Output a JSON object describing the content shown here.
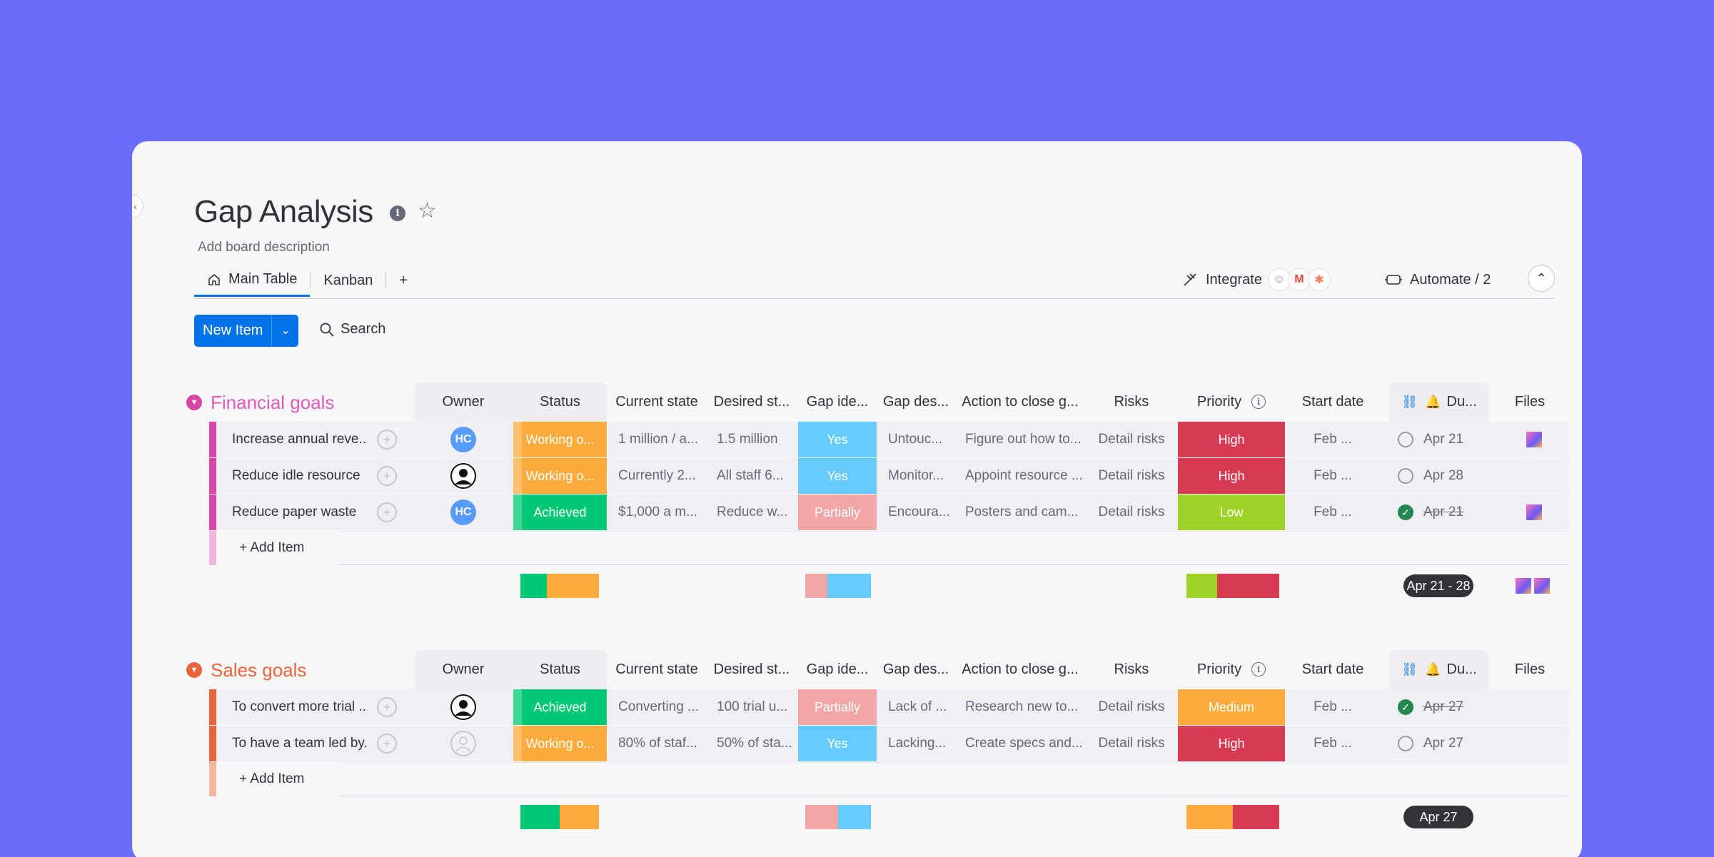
{
  "board": {
    "title": "Gap Analysis",
    "info_icon": "i",
    "description": "Add board description",
    "collapse_glyph": "‹"
  },
  "tabs": {
    "main": "Main Table",
    "kanban": "Kanban",
    "add": "+"
  },
  "toolbar": {
    "integrate": "Integrate",
    "automate": "Automate / 2",
    "new_item": "New Item",
    "search": "Search"
  },
  "columns": [
    "Owner",
    "Status",
    "Current state",
    "Desired st...",
    "Gap ide...",
    "Gap des...",
    "Action to close g...",
    "Risks",
    "Priority",
    "Start date",
    "Du...",
    "Files"
  ],
  "groups": [
    {
      "title": "Financial goals",
      "color": "#e2445c",
      "accent": "#d946a6",
      "add_item": "+ Add Item",
      "rows": [
        {
          "name": "Increase annual reve...",
          "owner": "HC",
          "status": "Working o...",
          "current": "1 million / a...",
          "desired": "1.5 million",
          "gap": "Yes",
          "gapdesc": "Untouc...",
          "action": "Figure out how to...",
          "risks": "Detail risks",
          "priority": "High",
          "start": "Feb ...",
          "due": "Apr 21",
          "due_done": false,
          "file": true
        },
        {
          "name": "Reduce idle resource",
          "owner": "person",
          "status": "Working o...",
          "current": "Currently 2...",
          "desired": "All staff 6...",
          "gap": "Yes",
          "gapdesc": "Monitor...",
          "action": "Appoint resource ...",
          "risks": "Detail risks",
          "priority": "High",
          "start": "Feb ...",
          "due": "Apr 28",
          "due_done": false,
          "file": false
        },
        {
          "name": "Reduce paper waste",
          "owner": "HC",
          "status": "Achieved",
          "current": "$1,000 a m...",
          "desired": "Reduce w...",
          "gap": "Partially",
          "gapdesc": "Encoura...",
          "action": "Posters and cam...",
          "risks": "Detail risks",
          "priority": "Low",
          "start": "Feb ...",
          "due": "Apr 21",
          "due_done": true,
          "file": true
        }
      ],
      "due_summary": "Apr 21 - 28"
    },
    {
      "title": "Sales goals",
      "color": "#e8643b",
      "add_item": "+ Add Item",
      "rows": [
        {
          "name": "To convert more trial ...",
          "owner": "person",
          "status": "Achieved",
          "current": "Converting ...",
          "desired": "100 trial u...",
          "gap": "Partially",
          "gapdesc": "Lack of ...",
          "action": "Research new to...",
          "risks": "Detail risks",
          "priority": "Medium",
          "start": "Feb ...",
          "due": "Apr 27",
          "due_done": true,
          "file": false
        },
        {
          "name": "To have a team led by...",
          "owner": "empty",
          "status": "Working o...",
          "current": "80% of staf...",
          "desired": "50% of sta...",
          "gap": "Yes",
          "gapdesc": "Lacking...",
          "action": "Create specs and...",
          "risks": "Detail risks",
          "priority": "High",
          "start": "Feb ...",
          "due": "Apr 27",
          "due_done": false,
          "file": false
        }
      ],
      "due_summary": "Apr 27"
    }
  ],
  "colors": {
    "working": "#fdab3d",
    "achieved": "#00c875",
    "yes": "#66ccff",
    "partially": "#f2a6a6",
    "high": "#d83a52",
    "low": "#9cd326",
    "medium": "#fdab3d",
    "background": "#6a6cfb"
  }
}
